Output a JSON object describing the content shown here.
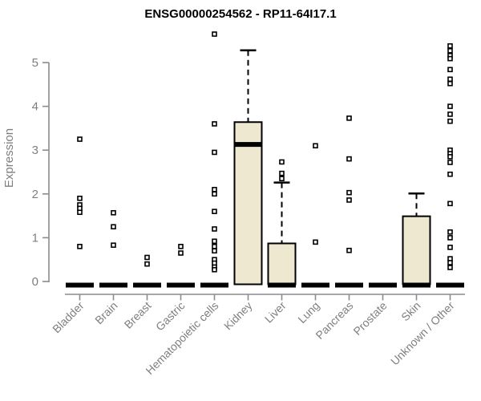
{
  "title": "ENSG00000254562 - RP11-64I17.1",
  "chart_data": {
    "type": "boxplot",
    "title": "ENSG00000254562 - RP11-64I17.1",
    "xlabel": "",
    "ylabel": "Expression",
    "ylim": [
      0,
      5.8
    ],
    "yticks": [
      0,
      1,
      2,
      3,
      4,
      5
    ],
    "grid": false,
    "legend": "none",
    "categories": [
      "Bladder",
      "Brain",
      "Breast",
      "Gastric",
      "Hematopoietic cells",
      "Kidney",
      "Liver",
      "Lung",
      "Pancreas",
      "Prostate",
      "Skin",
      "Unknown / Other"
    ],
    "boxes": [
      {
        "label": "Bladder",
        "q1": 0,
        "median": 0,
        "q3": 0,
        "whisker_high": 0,
        "outliers": [
          3.25,
          1.9,
          1.75,
          1.67,
          1.58,
          0.8
        ]
      },
      {
        "label": "Brain",
        "q1": 0,
        "median": 0,
        "q3": 0,
        "whisker_high": 0,
        "outliers": [
          1.57,
          1.25,
          0.83
        ]
      },
      {
        "label": "Breast",
        "q1": 0,
        "median": 0,
        "q3": 0,
        "whisker_high": 0,
        "outliers": [
          0.55,
          0.4
        ]
      },
      {
        "label": "Gastric",
        "q1": 0,
        "median": 0,
        "q3": 0,
        "whisker_high": 0,
        "outliers": [
          0.8,
          0.65
        ]
      },
      {
        "label": "Hematopoietic cells",
        "q1": 0,
        "median": 0,
        "q3": 0,
        "whisker_high": 0,
        "outliers": [
          5.65,
          3.6,
          2.95,
          2.1,
          2.0,
          1.6,
          1.2,
          0.92,
          0.8,
          0.7,
          0.5,
          0.42,
          0.33,
          0.27
        ]
      },
      {
        "label": "Kidney",
        "q1": 0,
        "median": 3.13,
        "q3": 3.64,
        "whisker_high": 5.28,
        "outliers": []
      },
      {
        "label": "Liver",
        "q1": 0,
        "median": 0,
        "q3": 0.87,
        "whisker_high": 2.26,
        "outliers": [
          2.73,
          2.47,
          2.35
        ]
      },
      {
        "label": "Lung",
        "q1": 0,
        "median": 0,
        "q3": 0,
        "whisker_high": 0,
        "outliers": [
          3.1,
          0.9
        ]
      },
      {
        "label": "Pancreas",
        "q1": 0,
        "median": 0,
        "q3": 0,
        "whisker_high": 0,
        "outliers": [
          3.73,
          2.8,
          2.03,
          1.86,
          0.71
        ]
      },
      {
        "label": "Prostate",
        "q1": 0,
        "median": 0,
        "q3": 0,
        "whisker_high": 0,
        "outliers": []
      },
      {
        "label": "Skin",
        "q1": 0,
        "median": 0,
        "q3": 1.49,
        "whisker_high": 2.01,
        "outliers": []
      },
      {
        "label": "Unknown / Other",
        "q1": 0,
        "median": 0,
        "q3": 0,
        "whisker_high": 0,
        "outliers": [
          5.38,
          5.27,
          5.16,
          5.09,
          4.84,
          4.62,
          4.52,
          4.0,
          3.82,
          3.66,
          3.0,
          2.92,
          2.85,
          2.72,
          2.45,
          1.78,
          1.13,
          1.0,
          0.78,
          0.52,
          0.43,
          0.32
        ]
      }
    ]
  },
  "colors": {
    "background": "#FFFFFF",
    "box_fill": "#EDE8CF",
    "box_stroke": "#000000",
    "median": "#000000",
    "whisker": "#000000",
    "outlier_stroke": "#000000",
    "outlier_fill": "#FFFFFF",
    "axis_line": "#8C8C8C",
    "tick_label": "#7F7F7F",
    "title": "#000000"
  }
}
